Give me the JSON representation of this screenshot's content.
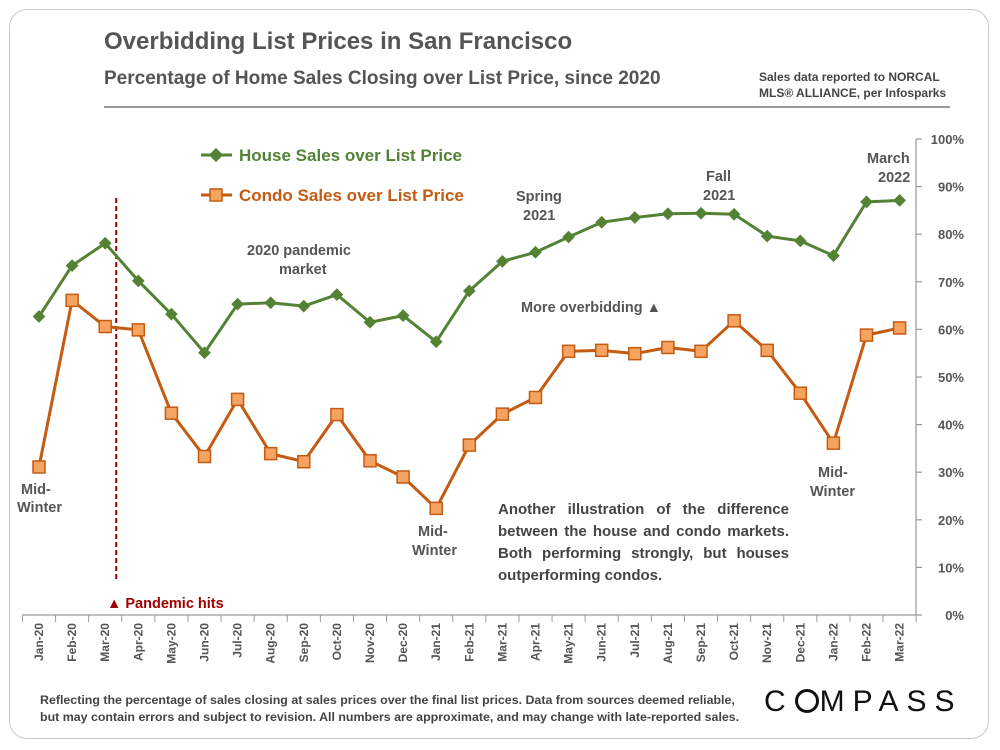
{
  "header": {
    "title": "Overbidding List Prices in San Francisco",
    "subtitle": "Percentage of Home Sales Closing over List Price, since 2020",
    "source_line1": "Sales data reported to NORCAL",
    "source_line2": "MLS® ALLIANCE, per Infosparks"
  },
  "footer": {
    "footnote_line1": "Reflecting the percentage of sales closing at sales prices over the final list prices. Data from sources deemed reliable,",
    "footnote_line2": "but may contain errors and subject to revision. All numbers are approximate, and may change with late-reported sales.",
    "logo": "COMPASS"
  },
  "chart_data": {
    "type": "line",
    "title": "Overbidding List Prices in San Francisco",
    "xlabel": "",
    "ylabel": "",
    "ylim": [
      0,
      100
    ],
    "yticks": [
      "0%",
      "10%",
      "20%",
      "30%",
      "40%",
      "50%",
      "60%",
      "70%",
      "80%",
      "90%",
      "100%"
    ],
    "categories": [
      "Jan-20",
      "Feb-20",
      "Mar-20",
      "Apr-20",
      "May-20",
      "Jun-20",
      "Jul-20",
      "Aug-20",
      "Sep-20",
      "Oct-20",
      "Nov-20",
      "Dec-20",
      "Jan-21",
      "Feb-21",
      "Mar-21",
      "Apr-21",
      "May-21",
      "Jun-21",
      "Jul-21",
      "Aug-21",
      "Sep-21",
      "Oct-21",
      "Nov-21",
      "Dec-21",
      "Jan-22",
      "Feb-22",
      "Mar-22"
    ],
    "series": [
      {
        "name": "House Sales over List Price",
        "color": "#548235",
        "marker": "diamond",
        "values": [
          62.7,
          73.4,
          78.1,
          70.2,
          63.2,
          55.1,
          65.3,
          65.6,
          64.9,
          67.3,
          61.5,
          62.9,
          57.4,
          68.1,
          74.3,
          76.2,
          79.4,
          82.5,
          83.5,
          84.3,
          84.4,
          84.2,
          79.6,
          78.6,
          75.5,
          86.8,
          87.1
        ]
      },
      {
        "name": "Condo Sales over List Price",
        "color": "#c55a11",
        "marker": "square",
        "values": [
          31.1,
          66.1,
          60.6,
          59.9,
          42.4,
          33.3,
          45.3,
          33.9,
          32.2,
          42.1,
          32.4,
          29.0,
          22.4,
          35.7,
          42.2,
          45.7,
          55.4,
          55.6,
          54.9,
          56.2,
          55.4,
          61.8,
          55.6,
          46.6,
          36.1,
          58.8,
          60.3
        ]
      }
    ],
    "annotations": {
      "pandemic_label": "▲ Pandemic hits",
      "pandemic_month": "Mar-20",
      "midwinter1_line1": "Mid-",
      "midwinter1_line2": "Winter",
      "midwinter2_line1": "Mid-",
      "midwinter2_line2": "Winter",
      "midwinter3_line1": "Mid-",
      "midwinter3_line2": "Winter",
      "pandemic_market_line1": "2020 pandemic",
      "pandemic_market_line2": "market",
      "spring_line1": "Spring",
      "spring_line2": "2021",
      "fall_line1": "Fall",
      "fall_line2": "2021",
      "march_line1": "March",
      "march_line2": "2022",
      "more_overbidding": "More overbidding ▲",
      "paragraph": "Another illustration of the difference between the house and condo markets. Both performing strongly, but houses outperforming condos."
    },
    "legend": [
      "House Sales over List Price",
      "Condo Sales over List Price"
    ],
    "grid": false
  }
}
